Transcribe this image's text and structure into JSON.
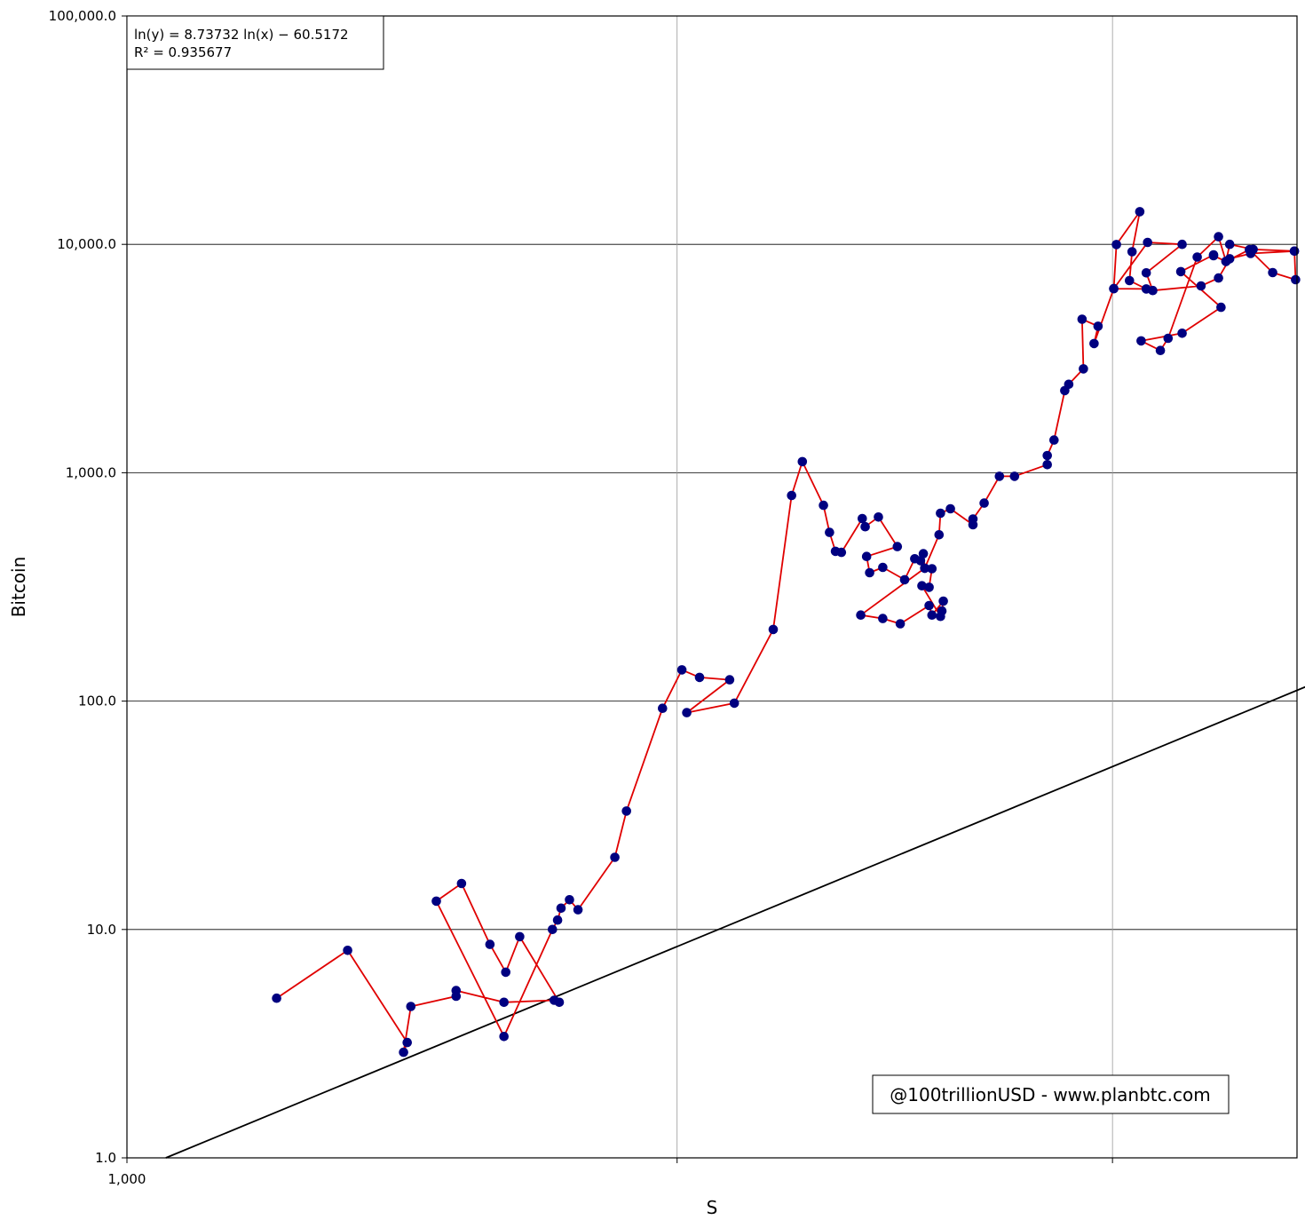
{
  "chart_data": {
    "type": "scatter",
    "title": "",
    "xlabel": "S",
    "ylabel": "Bitcoin",
    "x_scale": "log",
    "y_scale": "log",
    "xlim": [
      1000,
      2000
    ],
    "ylim": [
      1,
      100000
    ],
    "x_tick_labels": [
      "1,000"
    ],
    "x_gridlines": [
      1300,
      1600
    ],
    "y_ticks": [
      1,
      10,
      100,
      1000,
      10000,
      100000
    ],
    "y_tick_labels": [
      "1.0",
      "10.0",
      "100.0",
      "1,000.0",
      "10,000.0",
      "100,000.0"
    ],
    "grid": true,
    "annotation_equation": "ln(y) = 8.73732 ln(x) − 60.5172",
    "annotation_r2": "R² = 0.935677",
    "credit": "@100trillionUSD  -  www.planbtc.com",
    "fit": {
      "slope": 8.73732,
      "intercept": -60.5172
    },
    "colors": {
      "points": "#000080",
      "path": "#e00000",
      "fit": "#000000",
      "grid_major": "#000000",
      "grid_minor": "#999999"
    },
    "series": [
      {
        "values": [
          [
            1074,
            5.0
          ],
          [
            1111,
            8.1
          ],
          [
            1143,
            3.2
          ],
          [
            1141,
            2.9
          ],
          [
            1145,
            4.6
          ],
          [
            1170,
            5.1
          ],
          [
            1170,
            5.4
          ],
          [
            1197,
            4.8
          ],
          [
            1226,
            4.9
          ],
          [
            1229,
            4.8
          ],
          [
            1206,
            9.3
          ],
          [
            1198,
            6.5
          ],
          [
            1189,
            8.6
          ],
          [
            1173,
            15.9
          ],
          [
            1159,
            13.3
          ],
          [
            1197,
            3.4
          ],
          [
            1225,
            10.0
          ],
          [
            1228,
            11.0
          ],
          [
            1230,
            12.4
          ],
          [
            1235,
            13.5
          ],
          [
            1240,
            12.2
          ],
          [
            1262,
            20.7
          ],
          [
            1269,
            33.0
          ],
          [
            1291,
            93
          ],
          [
            1303,
            137
          ],
          [
            1314,
            127
          ],
          [
            1333,
            124
          ],
          [
            1306,
            89
          ],
          [
            1336,
            98
          ],
          [
            1361,
            206
          ],
          [
            1373,
            795
          ],
          [
            1380,
            1118
          ],
          [
            1394,
            720
          ],
          [
            1398,
            548
          ],
          [
            1402,
            453
          ],
          [
            1406,
            448
          ],
          [
            1420,
            630
          ],
          [
            1422,
            580
          ],
          [
            1431,
            640
          ],
          [
            1444,
            475
          ],
          [
            1423,
            430
          ],
          [
            1425,
            365
          ],
          [
            1434,
            385
          ],
          [
            1449,
            340
          ],
          [
            1456,
            420
          ],
          [
            1460,
            412
          ],
          [
            1462,
            442
          ],
          [
            1463,
            382
          ],
          [
            1468,
            380
          ],
          [
            1466,
            315
          ],
          [
            1461,
            320
          ],
          [
            1474,
            235
          ],
          [
            1475,
            248
          ],
          [
            1476,
            274
          ],
          [
            1468,
            238
          ],
          [
            1466,
            262
          ],
          [
            1446,
            218
          ],
          [
            1434,
            230
          ],
          [
            1419,
            238
          ],
          [
            1463,
            382
          ],
          [
            1473,
            535
          ],
          [
            1474,
            665
          ],
          [
            1481,
            695
          ],
          [
            1497,
            592
          ],
          [
            1497,
            627
          ],
          [
            1505,
            736
          ],
          [
            1516,
            965
          ],
          [
            1527,
            965
          ],
          [
            1551,
            1085
          ],
          [
            1551,
            1190
          ],
          [
            1556,
            1390
          ],
          [
            1564,
            2290
          ],
          [
            1567,
            2440
          ],
          [
            1578,
            2850
          ],
          [
            1577,
            4700
          ],
          [
            1589,
            4380
          ],
          [
            1586,
            3680
          ],
          [
            1601,
            6400
          ],
          [
            1603,
            9980
          ],
          [
            1621,
            13900
          ],
          [
            1615,
            9280
          ],
          [
            1613,
            6940
          ],
          [
            1626,
            6380
          ],
          [
            1601,
            6400
          ],
          [
            1627,
            10200
          ],
          [
            1654,
            10000
          ],
          [
            1626,
            7500
          ],
          [
            1631,
            6280
          ],
          [
            1669,
            6580
          ],
          [
            1683,
            7120
          ],
          [
            1692,
            8650
          ],
          [
            1709,
            9120
          ],
          [
            1745,
            9340
          ],
          [
            1746,
            7000
          ],
          [
            1727,
            7520
          ],
          [
            1708,
            9480
          ],
          [
            1689,
            8420
          ],
          [
            1683,
            10800
          ],
          [
            1666,
            8800
          ],
          [
            1643,
            3880
          ],
          [
            1637,
            3430
          ],
          [
            1622,
            3780
          ],
          [
            1654,
            4080
          ],
          [
            1685,
            5300
          ],
          [
            1653,
            7600
          ],
          [
            1679,
            9000
          ],
          [
            1679,
            8920
          ],
          [
            1689,
            8420
          ],
          [
            1692,
            10000
          ],
          [
            1711,
            9500
          ],
          [
            1745,
            9340
          ]
        ]
      }
    ]
  }
}
